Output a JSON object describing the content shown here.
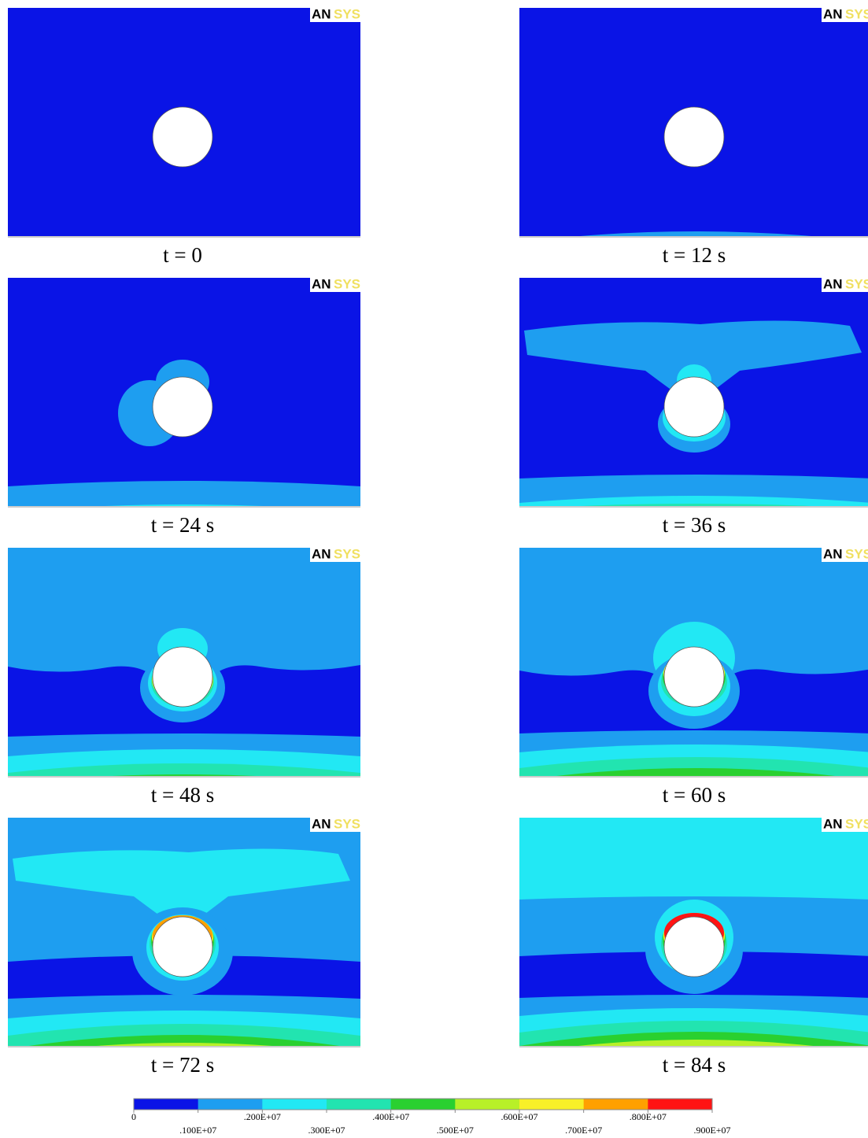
{
  "panels": [
    {
      "caption": "t = 0",
      "logo": [
        "AN",
        "SYS"
      ]
    },
    {
      "caption": "t = 12 s",
      "logo": [
        "AN",
        "SYS"
      ]
    },
    {
      "caption": "t = 24 s",
      "logo": [
        "AN",
        "SYS"
      ]
    },
    {
      "caption": "t = 36 s",
      "logo": [
        "AN",
        "SYS"
      ]
    },
    {
      "caption": "t = 48 s",
      "logo": [
        "AN",
        "SYS"
      ]
    },
    {
      "caption": "t = 60 s",
      "logo": [
        "AN",
        "SYS"
      ]
    },
    {
      "caption": "t = 72 s",
      "logo": [
        "AN",
        "SYS"
      ]
    },
    {
      "caption": "t = 84 s",
      "logo": [
        "AN",
        "SYS"
      ]
    }
  ],
  "legend": {
    "colors": [
      "#0a14e6",
      "#1e9ef0",
      "#22e8f4",
      "#22e4b0",
      "#2ad030",
      "#b8f028",
      "#f8f028",
      "#ffa000",
      "#ff1414"
    ],
    "labels": [
      "0",
      ".100E+07",
      ".200E+07",
      ".300E+07",
      ".400E+07",
      ".500E+07",
      ".600E+07",
      ".700E+07",
      ".800E+07",
      ".900E+07"
    ]
  }
}
